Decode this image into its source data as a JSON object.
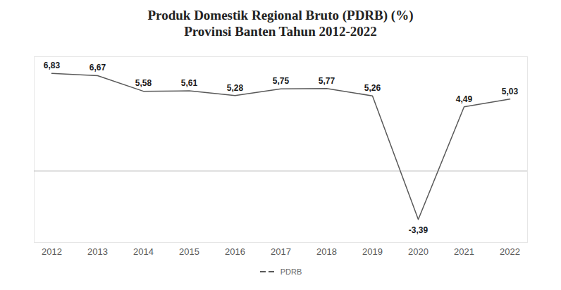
{
  "chart_data": {
    "type": "line",
    "title": "Produk Domestik Regional Bruto (PDRB) (%)",
    "subtitle": "Provinsi Banten Tahun 2012-2022",
    "categories": [
      "2012",
      "2013",
      "2014",
      "2015",
      "2016",
      "2017",
      "2018",
      "2019",
      "2020",
      "2021",
      "2022"
    ],
    "series": [
      {
        "name": "PDRB",
        "color": "#595959",
        "values": [
          6.83,
          6.67,
          5.58,
          5.61,
          5.28,
          5.75,
          5.77,
          5.26,
          -3.39,
          4.49,
          5.03
        ],
        "value_labels": [
          "6,83",
          "6,67",
          "5,58",
          "5,61",
          "5,28",
          "5,75",
          "5,77",
          "5,26",
          "-3,39",
          "4,49",
          "5,03"
        ]
      }
    ],
    "ylim": [
      -5,
      8
    ],
    "yticks": [
      0
    ],
    "grid": true,
    "tick_labels": "x",
    "data_labels": true,
    "legend": "bottom"
  }
}
